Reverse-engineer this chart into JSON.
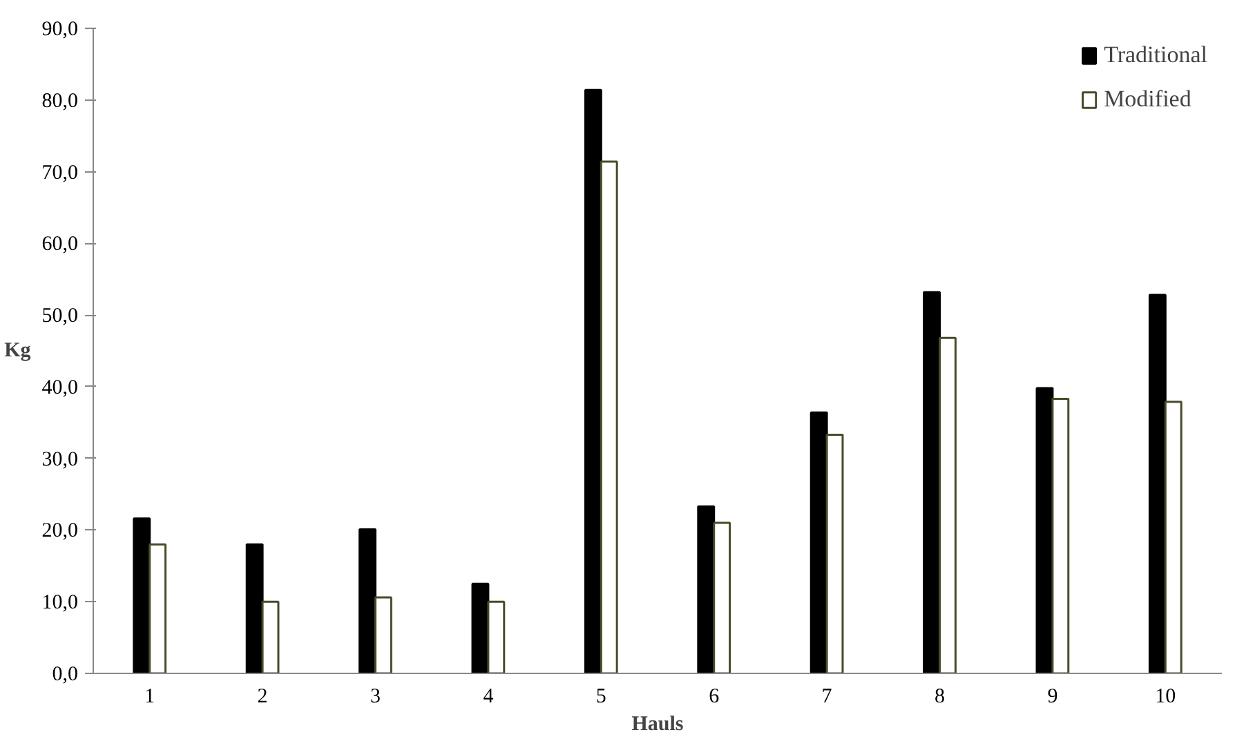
{
  "chart_data": {
    "type": "bar",
    "xlabel": "Hauls",
    "ylabel": "Kg",
    "categories": [
      "1",
      "2",
      "3",
      "4",
      "5",
      "6",
      "7",
      "8",
      "9",
      "10"
    ],
    "series": [
      {
        "name": "Traditional",
        "color": "#000000",
        "values": [
          21.6,
          18.0,
          20.1,
          12.5,
          81.4,
          23.3,
          36.4,
          53.2,
          39.8,
          52.8
        ]
      },
      {
        "name": "Modified",
        "color": "#ffffff",
        "values": [
          18.0,
          10.0,
          10.6,
          10.0,
          71.4,
          21.0,
          33.3,
          46.8,
          38.3,
          37.9
        ]
      }
    ],
    "ylim": [
      0,
      90
    ],
    "yticks": [
      {
        "value": 0,
        "label": "0,0"
      },
      {
        "value": 10,
        "label": "10,0"
      },
      {
        "value": 20,
        "label": "20,0"
      },
      {
        "value": 30,
        "label": "30,0"
      },
      {
        "value": 40,
        "label": "40,0"
      },
      {
        "value": 50,
        "label": "50,0"
      },
      {
        "value": 60,
        "label": "60,0"
      },
      {
        "value": 70,
        "label": "70,0"
      },
      {
        "value": 80,
        "label": "80,0"
      },
      {
        "value": 90,
        "label": "90,0"
      }
    ],
    "grid": false,
    "legend": "top right"
  }
}
